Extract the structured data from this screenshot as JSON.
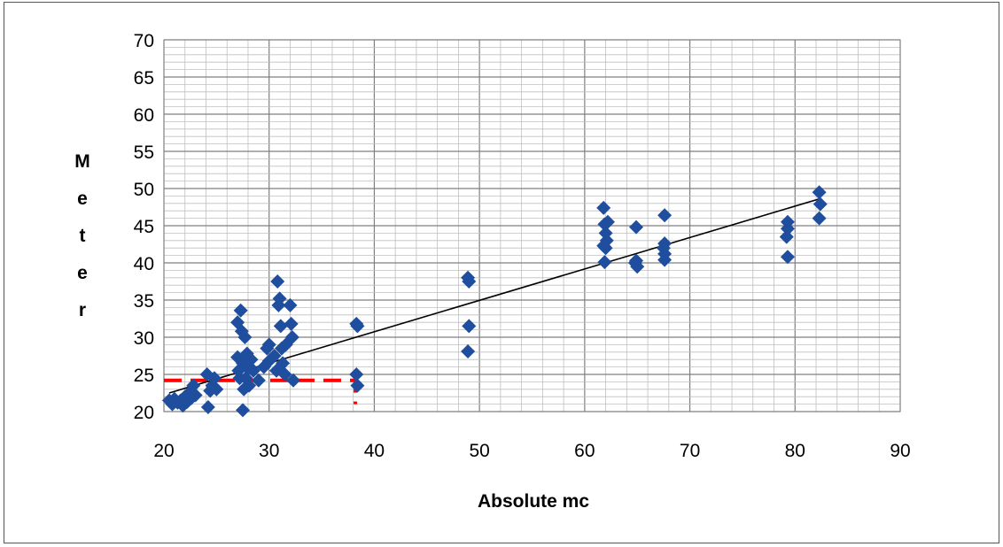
{
  "chart_data": {
    "type": "scatter",
    "title": "",
    "xlabel": "Absolute mc",
    "ylabel_letters": [
      "M",
      "e",
      "t",
      "e",
      "r"
    ],
    "xlim": [
      20,
      90
    ],
    "ylim": [
      20,
      70
    ],
    "x_ticks": [
      "20",
      "30",
      "40",
      "50",
      "60",
      "70",
      "80",
      "90"
    ],
    "y_ticks": [
      "20",
      "25",
      "30",
      "35",
      "40",
      "45",
      "50",
      "55",
      "60",
      "65",
      "70"
    ],
    "grid": "major and minor",
    "marker": "diamond",
    "colors": {
      "points": "#1f4e9e",
      "trendline": "#000000",
      "reference": "#ff0000",
      "major_grid": "#7f7f7f",
      "minor_grid": "#bfbfbf"
    },
    "series": [
      {
        "points": [
          [
            20.5,
            21.5
          ],
          [
            20.8,
            21.0
          ],
          [
            21.0,
            21.7
          ],
          [
            21.3,
            21.2
          ],
          [
            21.6,
            21.5
          ],
          [
            21.8,
            20.8
          ],
          [
            22.0,
            22.0
          ],
          [
            22.2,
            21.3
          ],
          [
            22.4,
            22.5
          ],
          [
            22.6,
            21.8
          ],
          [
            22.8,
            23.5
          ],
          [
            23.0,
            22.2
          ],
          [
            24.1,
            25.0
          ],
          [
            24.2,
            20.6
          ],
          [
            24.4,
            22.8
          ],
          [
            24.6,
            23.5
          ],
          [
            24.8,
            24.5
          ],
          [
            25.0,
            23.0
          ],
          [
            27.0,
            27.3
          ],
          [
            27.0,
            32.0
          ],
          [
            27.1,
            25.5
          ],
          [
            27.2,
            24.5
          ],
          [
            27.3,
            33.6
          ],
          [
            27.4,
            30.8
          ],
          [
            27.5,
            26.5
          ],
          [
            27.5,
            20.2
          ],
          [
            27.6,
            23.0
          ],
          [
            27.7,
            30.0
          ],
          [
            27.8,
            24.5
          ],
          [
            27.9,
            27.8
          ],
          [
            28.0,
            25.8
          ],
          [
            28.1,
            23.5
          ],
          [
            28.3,
            27.0
          ],
          [
            28.5,
            25.5
          ],
          [
            29.0,
            24.2
          ],
          [
            29.5,
            26.0
          ],
          [
            29.8,
            28.5
          ],
          [
            30.0,
            29.0
          ],
          [
            30.0,
            26.8
          ],
          [
            30.5,
            27.5
          ],
          [
            30.7,
            25.5
          ],
          [
            30.8,
            37.5
          ],
          [
            30.9,
            34.3
          ],
          [
            31.0,
            35.2
          ],
          [
            31.1,
            31.5
          ],
          [
            31.2,
            28.5
          ],
          [
            31.3,
            26.5
          ],
          [
            31.5,
            25.0
          ],
          [
            31.6,
            29.0
          ],
          [
            32.0,
            34.3
          ],
          [
            32.1,
            31.8
          ],
          [
            32.2,
            30.0
          ],
          [
            32.3,
            24.2
          ],
          [
            38.3,
            31.8
          ],
          [
            38.4,
            31.5
          ],
          [
            38.3,
            25.0
          ],
          [
            38.4,
            23.5
          ],
          [
            48.9,
            38.0
          ],
          [
            49.0,
            37.5
          ],
          [
            49.0,
            31.5
          ],
          [
            48.9,
            28.1
          ],
          [
            61.8,
            47.4
          ],
          [
            61.9,
            45.2
          ],
          [
            62.0,
            44.0
          ],
          [
            62.1,
            43.0
          ],
          [
            61.8,
            42.3
          ],
          [
            62.0,
            42.0
          ],
          [
            62.2,
            45.5
          ],
          [
            61.9,
            40.1
          ],
          [
            64.9,
            44.8
          ],
          [
            64.9,
            40.3
          ],
          [
            65.0,
            39.5
          ],
          [
            64.8,
            40.0
          ],
          [
            67.6,
            46.4
          ],
          [
            67.6,
            42.6
          ],
          [
            67.5,
            42.0
          ],
          [
            67.6,
            41.2
          ],
          [
            67.6,
            40.4
          ],
          [
            79.3,
            45.5
          ],
          [
            79.3,
            44.6
          ],
          [
            79.2,
            43.5
          ],
          [
            79.3,
            40.8
          ],
          [
            82.3,
            49.5
          ],
          [
            82.4,
            47.9
          ],
          [
            82.3,
            46.0
          ]
        ]
      }
    ],
    "trendline": {
      "x": [
        20.5,
        82.3
      ],
      "y": [
        22.5,
        48.6
      ]
    },
    "reference_line": {
      "points": [
        [
          20,
          24.2
        ],
        [
          38.2,
          24.2
        ],
        [
          38.2,
          21.0
        ]
      ],
      "style": "dashed"
    }
  }
}
